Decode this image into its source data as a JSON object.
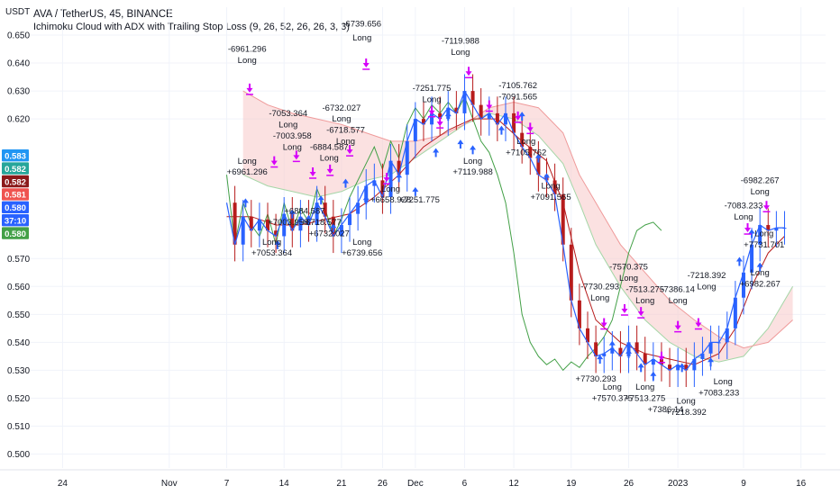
{
  "header": {
    "symbol": "AVA / TetherUS, 45, BINANCE",
    "study": "Ichimoku Cloud with ADX with Trailing Stop Loss (9, 26, 52, 26, 26, 3, 3)"
  },
  "unit": "USDT",
  "colors": {
    "up_candle": "#2962ff",
    "tenkan": "#2962ff",
    "kijun": "#b71c1c",
    "chikou": "#43a047",
    "senkou_a": "#a5d6a7",
    "senkou_b": "#ef9a9a",
    "cloud_bear": "#f8c9c9",
    "long_arrow": "#2962ff",
    "exit_arrow": "#d500f9",
    "orange": "#ff9800"
  },
  "chart_data": {
    "type": "line",
    "ylim": [
      0.495,
      0.66
    ],
    "yticks": [
      "0.650",
      "0.640",
      "0.630",
      "0.620",
      "0.570",
      "0.560",
      "0.550",
      "0.540",
      "0.530",
      "0.520",
      "0.510",
      "0.500"
    ],
    "yticks_values": [
      0.65,
      0.64,
      0.63,
      0.62,
      0.57,
      0.56,
      0.55,
      0.54,
      0.53,
      0.52,
      0.51,
      0.5
    ],
    "xlabels": [
      "24",
      "Nov",
      "7",
      "14",
      "21",
      "26",
      "Dec",
      "6",
      "12",
      "19",
      "26",
      "2023",
      "9",
      "16"
    ],
    "x_tick_index": [
      -13,
      0,
      7,
      14,
      21,
      26,
      30,
      36,
      42,
      49,
      56,
      62,
      70,
      77
    ],
    "price_badges": [
      {
        "label": "0.583",
        "color": "#2196f3"
      },
      {
        "label": "0.582",
        "color": "#26a69a"
      },
      {
        "label": "0.582",
        "color": "#8b1a1a"
      },
      {
        "label": "0.581",
        "color": "#ef5350"
      },
      {
        "label": "0.580",
        "color": "#2962ff"
      },
      {
        "label": "37:10",
        "color": "#2962ff"
      },
      {
        "label": "0.580",
        "color": "#43a047"
      }
    ],
    "close": [
      [
        7,
        0.59
      ],
      [
        8,
        0.575
      ],
      [
        9,
        0.585
      ],
      [
        10,
        0.58
      ],
      [
        11,
        0.584
      ],
      [
        12,
        0.58
      ],
      [
        13,
        0.578
      ],
      [
        14,
        0.586
      ],
      [
        15,
        0.58
      ],
      [
        16,
        0.585
      ],
      [
        17,
        0.582
      ],
      [
        18,
        0.59
      ],
      [
        19,
        0.585
      ],
      [
        20,
        0.578
      ],
      [
        21,
        0.582
      ],
      [
        22,
        0.586
      ],
      [
        23,
        0.59
      ],
      [
        24,
        0.596
      ],
      [
        25,
        0.598
      ],
      [
        26,
        0.592
      ],
      [
        27,
        0.605
      ],
      [
        28,
        0.6
      ],
      [
        29,
        0.612
      ],
      [
        30,
        0.62
      ],
      [
        31,
        0.618
      ],
      [
        32,
        0.622
      ],
      [
        33,
        0.62
      ],
      [
        34,
        0.624
      ],
      [
        35,
        0.622
      ],
      [
        36,
        0.63
      ],
      [
        37,
        0.625
      ],
      [
        38,
        0.62
      ],
      [
        39,
        0.622
      ],
      [
        40,
        0.618
      ],
      [
        41,
        0.622
      ],
      [
        42,
        0.615
      ],
      [
        43,
        0.61
      ],
      [
        44,
        0.606
      ],
      [
        45,
        0.6
      ],
      [
        46,
        0.598
      ],
      [
        47,
        0.593
      ],
      [
        48,
        0.575
      ],
      [
        49,
        0.555
      ],
      [
        50,
        0.545
      ],
      [
        51,
        0.54
      ],
      [
        52,
        0.535
      ],
      [
        53,
        0.536
      ],
      [
        54,
        0.538
      ],
      [
        55,
        0.535
      ],
      [
        56,
        0.54
      ],
      [
        57,
        0.536
      ],
      [
        58,
        0.532
      ],
      [
        59,
        0.534
      ],
      [
        60,
        0.532
      ],
      [
        61,
        0.53
      ],
      [
        62,
        0.532
      ],
      [
        63,
        0.53
      ],
      [
        64,
        0.534
      ],
      [
        65,
        0.536
      ],
      [
        66,
        0.54
      ],
      [
        67,
        0.54
      ],
      [
        68,
        0.545
      ],
      [
        69,
        0.556
      ],
      [
        70,
        0.565
      ],
      [
        71,
        0.575
      ],
      [
        72,
        0.582
      ],
      [
        73,
        0.58
      ],
      [
        74,
        0.581
      ],
      [
        75,
        0.581
      ]
    ],
    "kijun": [
      [
        7,
        0.585
      ],
      [
        10,
        0.585
      ],
      [
        13,
        0.582
      ],
      [
        16,
        0.582
      ],
      [
        19,
        0.584
      ],
      [
        22,
        0.586
      ],
      [
        25,
        0.592
      ],
      [
        28,
        0.6
      ],
      [
        31,
        0.61
      ],
      [
        34,
        0.616
      ],
      [
        37,
        0.62
      ],
      [
        40,
        0.62
      ],
      [
        43,
        0.612
      ],
      [
        46,
        0.605
      ],
      [
        48,
        0.59
      ],
      [
        50,
        0.565
      ],
      [
        52,
        0.548
      ],
      [
        55,
        0.54
      ],
      [
        58,
        0.536
      ],
      [
        61,
        0.534
      ],
      [
        64,
        0.532
      ],
      [
        67,
        0.536
      ],
      [
        69,
        0.545
      ],
      [
        71,
        0.56
      ],
      [
        73,
        0.572
      ],
      [
        75,
        0.578
      ]
    ],
    "senkou_a": [
      [
        9,
        0.6
      ],
      [
        12,
        0.596
      ],
      [
        15,
        0.594
      ],
      [
        18,
        0.592
      ],
      [
        21,
        0.594
      ],
      [
        24,
        0.598
      ],
      [
        27,
        0.6
      ],
      [
        30,
        0.606
      ],
      [
        33,
        0.612
      ],
      [
        36,
        0.618
      ],
      [
        39,
        0.622
      ],
      [
        42,
        0.62
      ],
      [
        45,
        0.614
      ],
      [
        48,
        0.604
      ],
      [
        50,
        0.59
      ],
      [
        52,
        0.575
      ],
      [
        55,
        0.56
      ],
      [
        58,
        0.548
      ],
      [
        61,
        0.54
      ],
      [
        64,
        0.535
      ],
      [
        67,
        0.533
      ],
      [
        70,
        0.535
      ],
      [
        73,
        0.545
      ],
      [
        76,
        0.56
      ]
    ],
    "senkou_b": [
      [
        9,
        0.63
      ],
      [
        12,
        0.625
      ],
      [
        15,
        0.622
      ],
      [
        18,
        0.62
      ],
      [
        21,
        0.618
      ],
      [
        24,
        0.615
      ],
      [
        27,
        0.612
      ],
      [
        30,
        0.612
      ],
      [
        33,
        0.614
      ],
      [
        36,
        0.618
      ],
      [
        39,
        0.624
      ],
      [
        42,
        0.626
      ],
      [
        45,
        0.624
      ],
      [
        48,
        0.615
      ],
      [
        50,
        0.6
      ],
      [
        52,
        0.59
      ],
      [
        55,
        0.575
      ],
      [
        58,
        0.565
      ],
      [
        61,
        0.555
      ],
      [
        64,
        0.548
      ],
      [
        67,
        0.542
      ],
      [
        70,
        0.538
      ],
      [
        73,
        0.54
      ],
      [
        76,
        0.548
      ]
    ],
    "chikou": [
      [
        7,
        0.6
      ],
      [
        8,
        0.575
      ],
      [
        9,
        0.59
      ],
      [
        10,
        0.582
      ],
      [
        11,
        0.578
      ],
      [
        12,
        0.586
      ],
      [
        13,
        0.575
      ],
      [
        14,
        0.59
      ],
      [
        15,
        0.58
      ],
      [
        16,
        0.588
      ],
      [
        17,
        0.583
      ],
      [
        18,
        0.595
      ],
      [
        19,
        0.588
      ],
      [
        20,
        0.578
      ],
      [
        21,
        0.584
      ],
      [
        22,
        0.592
      ],
      [
        23,
        0.598
      ],
      [
        24,
        0.604
      ],
      [
        25,
        0.61
      ],
      [
        26,
        0.602
      ],
      [
        27,
        0.612
      ],
      [
        28,
        0.606
      ],
      [
        29,
        0.618
      ],
      [
        30,
        0.624
      ],
      [
        31,
        0.62
      ],
      [
        32,
        0.625
      ],
      [
        33,
        0.622
      ],
      [
        34,
        0.626
      ],
      [
        35,
        0.622
      ],
      [
        36,
        0.628
      ],
      [
        37,
        0.62
      ],
      [
        38,
        0.612
      ],
      [
        39,
        0.608
      ],
      [
        40,
        0.6
      ],
      [
        41,
        0.59
      ],
      [
        42,
        0.572
      ],
      [
        43,
        0.55
      ],
      [
        44,
        0.54
      ],
      [
        45,
        0.535
      ],
      [
        46,
        0.532
      ],
      [
        47,
        0.534
      ],
      [
        48,
        0.53
      ],
      [
        49,
        0.533
      ],
      [
        50,
        0.531
      ],
      [
        51,
        0.535
      ],
      [
        52,
        0.538
      ],
      [
        53,
        0.542
      ],
      [
        54,
        0.548
      ],
      [
        55,
        0.56
      ],
      [
        56,
        0.572
      ],
      [
        57,
        0.58
      ],
      [
        58,
        0.582
      ],
      [
        59,
        0.583
      ],
      [
        60,
        0.58
      ]
    ],
    "annotations": [
      {
        "text": "-6961.296",
        "x": 9.5,
        "y": 0.644
      },
      {
        "text": "Long",
        "x": 9.5,
        "y": 0.64
      },
      {
        "text": "-6739.656",
        "x": 23.5,
        "y": 0.653
      },
      {
        "text": "Long",
        "x": 23.5,
        "y": 0.648
      },
      {
        "text": "-7119.988",
        "x": 35.5,
        "y": 0.647
      },
      {
        "text": "Long",
        "x": 35.5,
        "y": 0.643
      },
      {
        "text": "-7105.762",
        "x": 42.5,
        "y": 0.631
      },
      {
        "text": "-7091.565",
        "x": 42.5,
        "y": 0.627
      },
      {
        "text": "-7251.775",
        "x": 32.0,
        "y": 0.63
      },
      {
        "text": "Long",
        "x": 32.0,
        "y": 0.626
      },
      {
        "text": "-7053.364",
        "x": 14.5,
        "y": 0.621
      },
      {
        "text": "Long",
        "x": 14.5,
        "y": 0.617
      },
      {
        "text": "-7003.958",
        "x": 15.0,
        "y": 0.613
      },
      {
        "text": "Long",
        "x": 15.0,
        "y": 0.609
      },
      {
        "text": "-6732.027",
        "x": 21.0,
        "y": 0.623
      },
      {
        "text": "Long",
        "x": 21.0,
        "y": 0.619
      },
      {
        "text": "-6718.577",
        "x": 21.5,
        "y": 0.615
      },
      {
        "text": "Long",
        "x": 21.5,
        "y": 0.611
      },
      {
        "text": "-6884.587",
        "x": 19.5,
        "y": 0.609
      },
      {
        "text": "Long",
        "x": 19.5,
        "y": 0.605
      },
      {
        "text": "+6961.296",
        "x": 9.5,
        "y": 0.6
      },
      {
        "text": "Long",
        "x": 9.5,
        "y": 0.604
      },
      {
        "text": "Long",
        "x": 37.0,
        "y": 0.604
      },
      {
        "text": "+7119.988",
        "x": 37.0,
        "y": 0.6
      },
      {
        "text": "Long",
        "x": 43.5,
        "y": 0.611
      },
      {
        "text": "+7105.762",
        "x": 43.5,
        "y": 0.607
      },
      {
        "text": "Long",
        "x": 46.5,
        "y": 0.595
      },
      {
        "text": "+7091.565",
        "x": 46.5,
        "y": 0.591
      },
      {
        "text": "Long",
        "x": 27.0,
        "y": 0.594
      },
      {
        "text": "+6658.928",
        "x": 27.0,
        "y": 0.59
      },
      {
        "text": "+7251.775",
        "x": 30.5,
        "y": 0.59
      },
      {
        "text": "+7003.958",
        "x": 14.5,
        "y": 0.582
      },
      {
        "text": "+6884.587",
        "x": 16.5,
        "y": 0.586
      },
      {
        "text": "+6718.577",
        "x": 18.5,
        "y": 0.582
      },
      {
        "text": "+6732.027",
        "x": 19.5,
        "y": 0.578
      },
      {
        "text": "Long",
        "x": 12.5,
        "y": 0.575
      },
      {
        "text": "+7053.364",
        "x": 12.5,
        "y": 0.571
      },
      {
        "text": "Long",
        "x": 23.5,
        "y": 0.575
      },
      {
        "text": "+6739.656",
        "x": 23.5,
        "y": 0.571
      },
      {
        "text": "-7570.375",
        "x": 56.0,
        "y": 0.566
      },
      {
        "text": "Long",
        "x": 56.0,
        "y": 0.562
      },
      {
        "text": "-7730.293",
        "x": 52.5,
        "y": 0.559
      },
      {
        "text": "Long",
        "x": 52.5,
        "y": 0.555
      },
      {
        "text": "-7513.275",
        "x": 58.0,
        "y": 0.558
      },
      {
        "text": "Long",
        "x": 58.0,
        "y": 0.554
      },
      {
        "text": "-7386.14",
        "x": 62.0,
        "y": 0.558
      },
      {
        "text": "Long",
        "x": 62.0,
        "y": 0.554
      },
      {
        "text": "-7218.392",
        "x": 65.5,
        "y": 0.563
      },
      {
        "text": "Long",
        "x": 65.5,
        "y": 0.559
      },
      {
        "text": "+7730.293",
        "x": 52.0,
        "y": 0.526
      },
      {
        "text": "Long",
        "x": 54.0,
        "y": 0.523
      },
      {
        "text": "+7570.375",
        "x": 54.0,
        "y": 0.519
      },
      {
        "text": "Long",
        "x": 58.0,
        "y": 0.523
      },
      {
        "text": "+7513.275",
        "x": 58.0,
        "y": 0.519
      },
      {
        "text": "+7386.14",
        "x": 60.5,
        "y": 0.515
      },
      {
        "text": "Long",
        "x": 63.0,
        "y": 0.518
      },
      {
        "text": "+7218.392",
        "x": 63.0,
        "y": 0.514
      },
      {
        "text": "Long",
        "x": 67.5,
        "y": 0.525
      },
      {
        "text": "+7083.233",
        "x": 67.0,
        "y": 0.521
      },
      {
        "text": "-6982.267",
        "x": 72.0,
        "y": 0.597
      },
      {
        "text": "Long",
        "x": 72.0,
        "y": 0.593
      },
      {
        "text": "-7083.233",
        "x": 70.0,
        "y": 0.588
      },
      {
        "text": "Long",
        "x": 70.0,
        "y": 0.584
      },
      {
        "text": "Long",
        "x": 72.5,
        "y": 0.578
      },
      {
        "text": "+7731.701",
        "x": 72.5,
        "y": 0.574
      },
      {
        "text": "Long",
        "x": 72.0,
        "y": 0.564
      },
      {
        "text": "+6982.267",
        "x": 72.0,
        "y": 0.56
      }
    ],
    "long_markers": [
      [
        9.3,
        0.589
      ],
      [
        13.2,
        0.574
      ],
      [
        15.0,
        0.585
      ],
      [
        17.0,
        0.583
      ],
      [
        18.5,
        0.59
      ],
      [
        20.0,
        0.58
      ],
      [
        21.5,
        0.596
      ],
      [
        24.0,
        0.59
      ],
      [
        28.0,
        0.598
      ],
      [
        30.0,
        0.593
      ],
      [
        32.5,
        0.607
      ],
      [
        34.0,
        0.62
      ],
      [
        35.5,
        0.61
      ],
      [
        37.0,
        0.608
      ],
      [
        40.5,
        0.615
      ],
      [
        43.0,
        0.62
      ],
      [
        45.0,
        0.605
      ],
      [
        46.0,
        0.598
      ],
      [
        52.5,
        0.533
      ],
      [
        54.0,
        0.538
      ],
      [
        56.0,
        0.535
      ],
      [
        57.5,
        0.53
      ],
      [
        59.0,
        0.527
      ],
      [
        62.5,
        0.53
      ],
      [
        66.0,
        0.532
      ],
      [
        69.5,
        0.568
      ],
      [
        71.0,
        0.578
      ],
      [
        72.0,
        0.566
      ]
    ],
    "exit_markers": [
      [
        9.8,
        0.632
      ],
      [
        12.8,
        0.606
      ],
      [
        15.5,
        0.608
      ],
      [
        17.5,
        0.602
      ],
      [
        19.6,
        0.603
      ],
      [
        22.0,
        0.61
      ],
      [
        24.0,
        0.641
      ],
      [
        26.5,
        0.6
      ],
      [
        32.0,
        0.624
      ],
      [
        33.0,
        0.62
      ],
      [
        36.5,
        0.638
      ],
      [
        39.0,
        0.626
      ],
      [
        42.5,
        0.622
      ],
      [
        44.0,
        0.618
      ],
      [
        53.0,
        0.548
      ],
      [
        55.5,
        0.553
      ],
      [
        57.5,
        0.552
      ],
      [
        60.0,
        0.536
      ],
      [
        62.0,
        0.547
      ],
      [
        64.5,
        0.548
      ],
      [
        70.5,
        0.582
      ],
      [
        72.8,
        0.59
      ]
    ]
  }
}
